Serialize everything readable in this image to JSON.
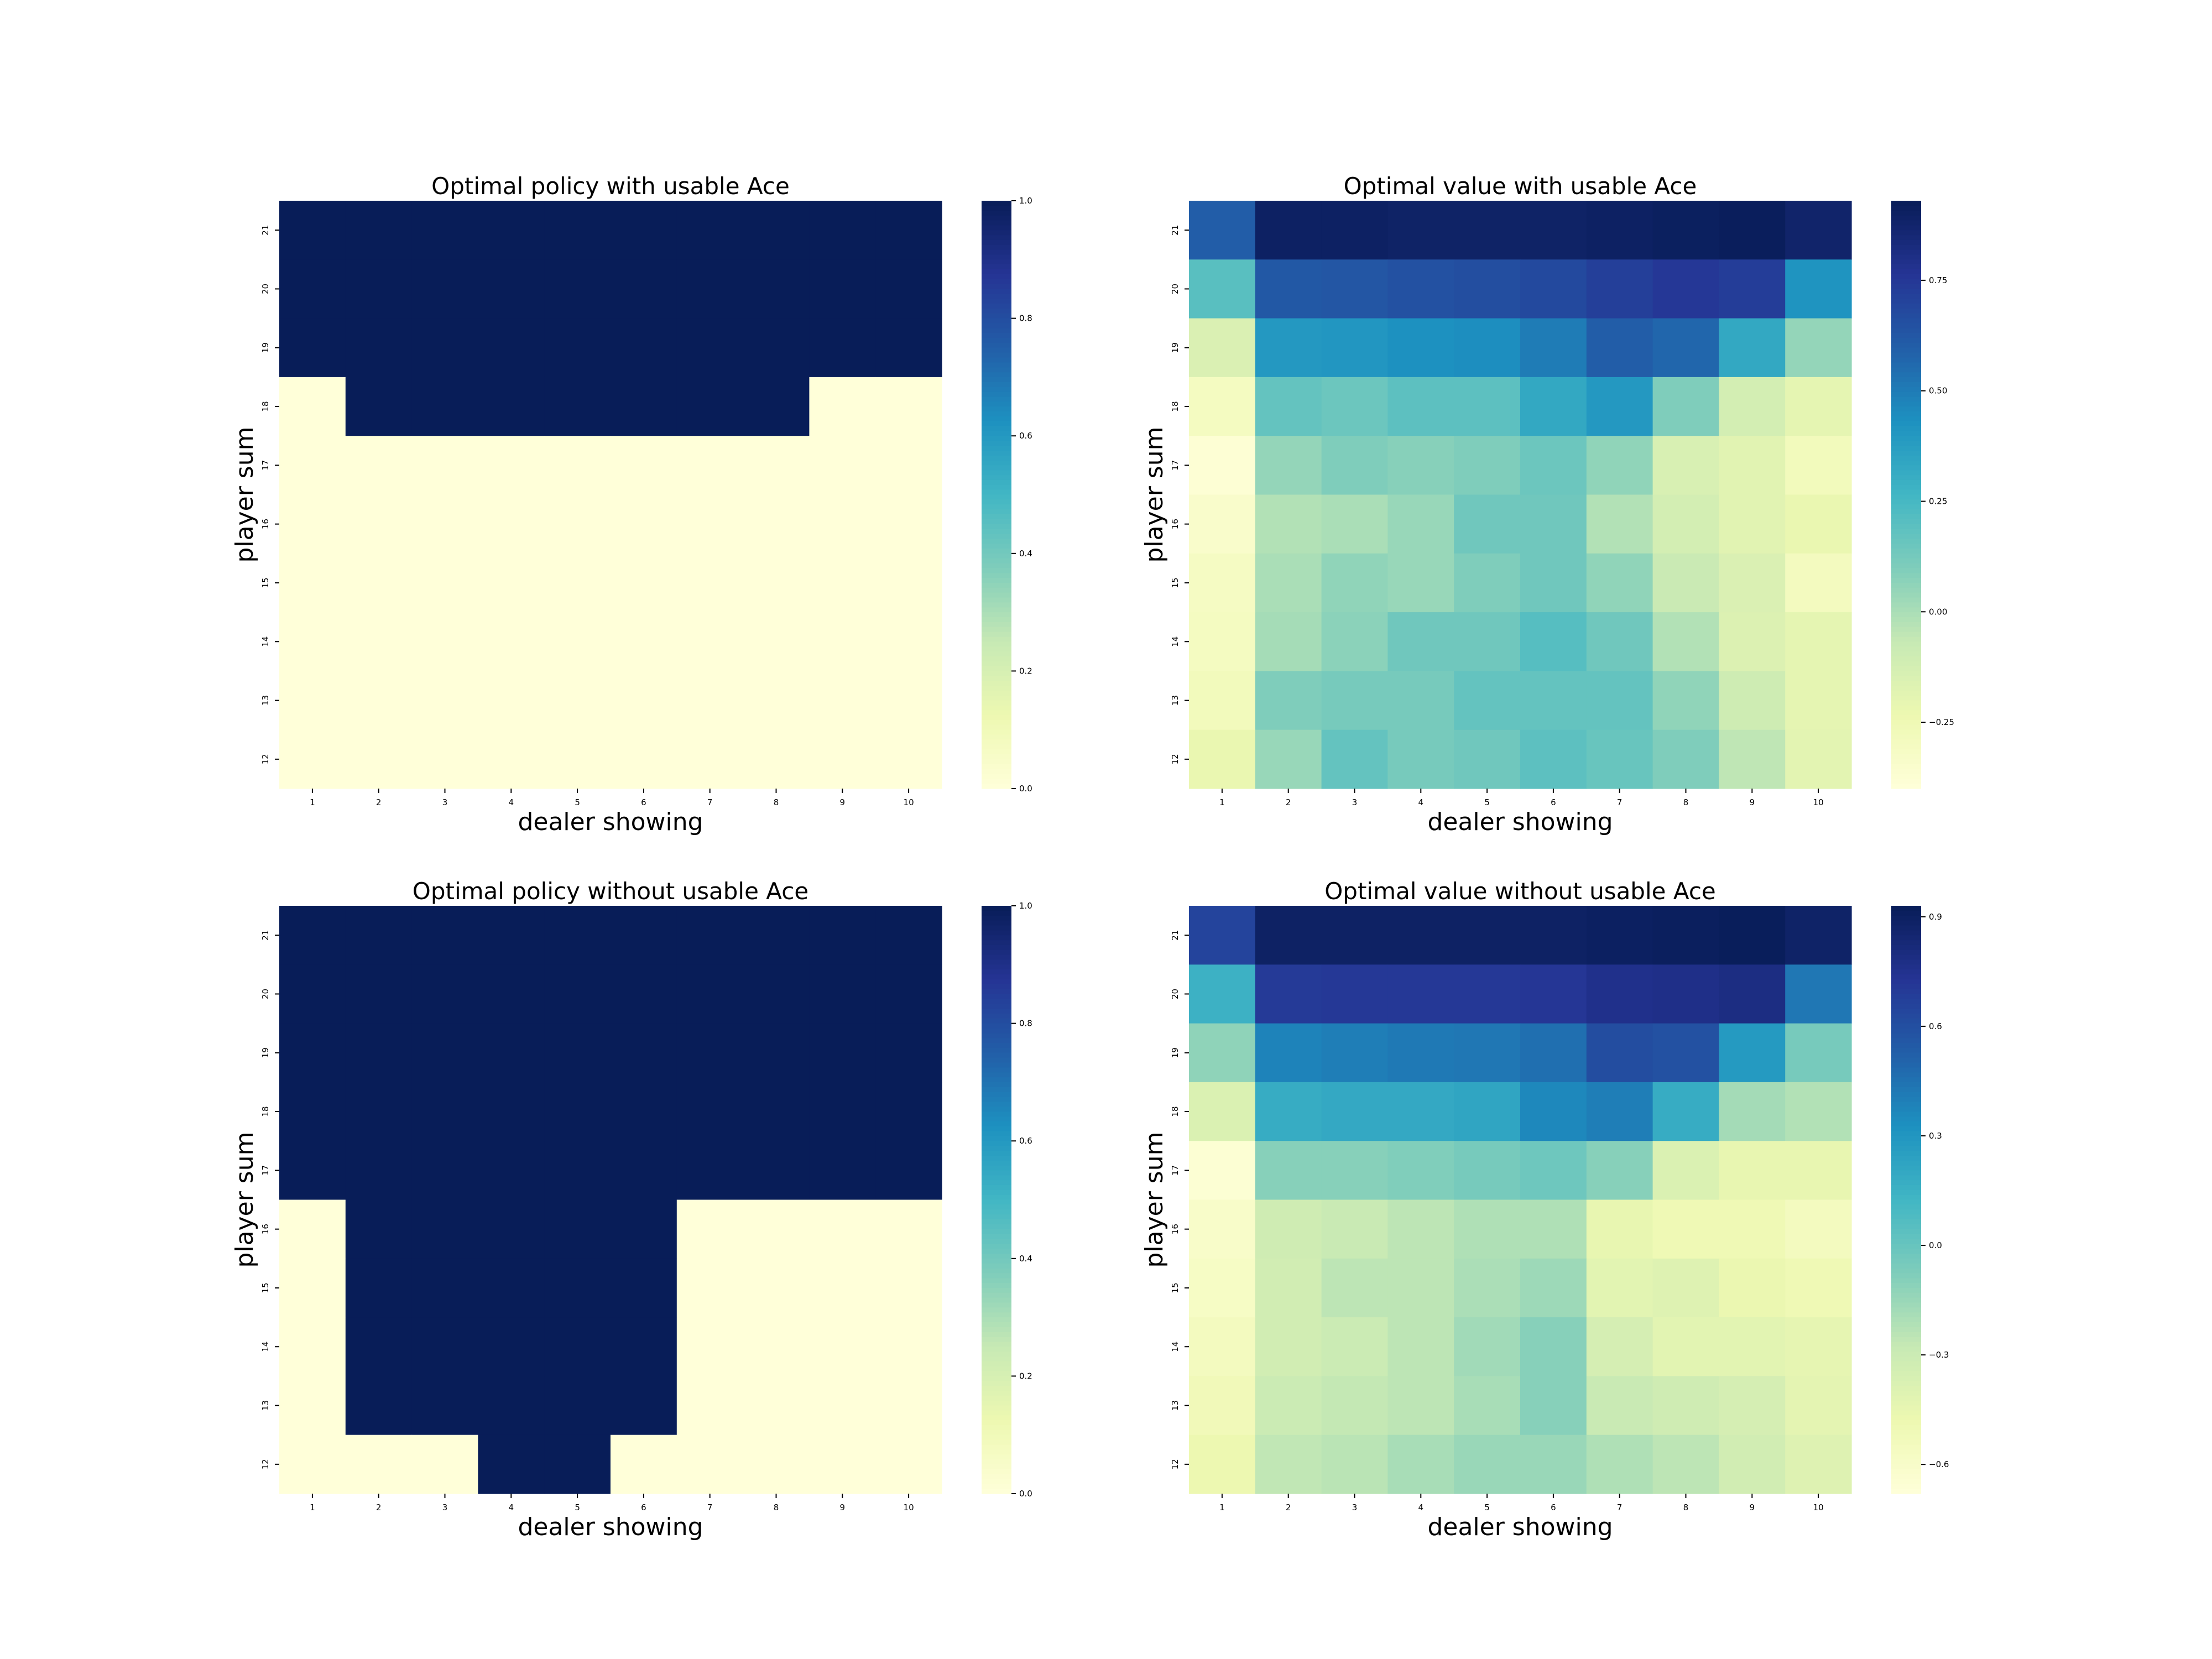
{
  "chart_data": [
    {
      "type": "heatmap",
      "title": "Optimal policy with usable Ace",
      "xlabel": "dealer showing",
      "ylabel": "player sum",
      "x_ticks": [
        "1",
        "2",
        "3",
        "4",
        "5",
        "6",
        "7",
        "8",
        "9",
        "10"
      ],
      "y_ticks": [
        "21",
        "20",
        "19",
        "18",
        "17",
        "16",
        "15",
        "14",
        "13",
        "12"
      ],
      "colorbar_range": [
        0,
        1
      ],
      "colorbar_ticks": [
        {
          "v": 1,
          "label": "1.0"
        },
        {
          "v": 0.8,
          "label": "0.8"
        },
        {
          "v": 0.6,
          "label": "0.6"
        },
        {
          "v": 0.4,
          "label": "0.4"
        },
        {
          "v": 0.2,
          "label": "0.2"
        },
        {
          "v": 0,
          "label": "0.0"
        }
      ],
      "values": [
        [
          1,
          1,
          1,
          1,
          1,
          1,
          1,
          1,
          1,
          1
        ],
        [
          1,
          1,
          1,
          1,
          1,
          1,
          1,
          1,
          1,
          1
        ],
        [
          1,
          1,
          1,
          1,
          1,
          1,
          1,
          1,
          1,
          1
        ],
        [
          0,
          1,
          1,
          1,
          1,
          1,
          1,
          1,
          0,
          0
        ],
        [
          0,
          0,
          0,
          0,
          0,
          0,
          0,
          0,
          0,
          0
        ],
        [
          0,
          0,
          0,
          0,
          0,
          0,
          0,
          0,
          0,
          0
        ],
        [
          0,
          0,
          0,
          0,
          0,
          0,
          0,
          0,
          0,
          0
        ],
        [
          0,
          0,
          0,
          0,
          0,
          0,
          0,
          0,
          0,
          0
        ],
        [
          0,
          0,
          0,
          0,
          0,
          0,
          0,
          0,
          0,
          0
        ],
        [
          0,
          0,
          0,
          0,
          0,
          0,
          0,
          0,
          0,
          0
        ]
      ]
    },
    {
      "type": "heatmap",
      "title": "Optimal value with usable Ace",
      "xlabel": "dealer showing",
      "ylabel": "player sum",
      "x_ticks": [
        "1",
        "2",
        "3",
        "4",
        "5",
        "6",
        "7",
        "8",
        "9",
        "10"
      ],
      "y_ticks": [
        "21",
        "20",
        "19",
        "18",
        "17",
        "16",
        "15",
        "14",
        "13",
        "12"
      ],
      "colorbar_range": [
        -0.4,
        0.93
      ],
      "colorbar_ticks": [
        {
          "v": 0.75,
          "label": "0.75"
        },
        {
          "v": 0.5,
          "label": "0.50"
        },
        {
          "v": 0.25,
          "label": "0.25"
        },
        {
          "v": 0,
          "label": "0.00"
        },
        {
          "v": -0.25,
          "label": "−0.25"
        }
      ],
      "values": [
        [
          0.6,
          0.9,
          0.9,
          0.89,
          0.89,
          0.89,
          0.9,
          0.91,
          0.92,
          0.88
        ],
        [
          0.2,
          0.62,
          0.63,
          0.65,
          0.66,
          0.68,
          0.72,
          0.75,
          0.73,
          0.42
        ],
        [
          -0.15,
          0.4,
          0.41,
          0.43,
          0.44,
          0.5,
          0.6,
          0.57,
          0.33,
          0.05
        ],
        [
          -0.3,
          0.17,
          0.15,
          0.19,
          0.19,
          0.33,
          0.4,
          0.1,
          -0.12,
          -0.2
        ],
        [
          -0.38,
          0.05,
          0.1,
          0.08,
          0.1,
          0.15,
          0.06,
          -0.14,
          -0.18,
          -0.28
        ],
        [
          -0.34,
          -0.02,
          0.0,
          0.04,
          0.14,
          0.14,
          -0.02,
          -0.12,
          -0.18,
          -0.22
        ],
        [
          -0.31,
          0.0,
          0.06,
          0.04,
          0.1,
          0.14,
          0.06,
          -0.08,
          -0.15,
          -0.29
        ],
        [
          -0.3,
          0.01,
          0.07,
          0.14,
          0.14,
          0.21,
          0.14,
          -0.02,
          -0.16,
          -0.2
        ],
        [
          -0.28,
          0.1,
          0.12,
          0.12,
          0.17,
          0.17,
          0.17,
          0.06,
          -0.1,
          -0.2
        ],
        [
          -0.22,
          0.04,
          0.17,
          0.12,
          0.14,
          0.19,
          0.16,
          0.1,
          -0.05,
          -0.19
        ]
      ]
    },
    {
      "type": "heatmap",
      "title": "Optimal policy without usable Ace",
      "xlabel": "dealer showing",
      "ylabel": "player sum",
      "x_ticks": [
        "1",
        "2",
        "3",
        "4",
        "5",
        "6",
        "7",
        "8",
        "9",
        "10"
      ],
      "y_ticks": [
        "21",
        "20",
        "19",
        "18",
        "17",
        "16",
        "15",
        "14",
        "13",
        "12"
      ],
      "colorbar_range": [
        0,
        1
      ],
      "colorbar_ticks": [
        {
          "v": 1,
          "label": "1.0"
        },
        {
          "v": 0.8,
          "label": "0.8"
        },
        {
          "v": 0.6,
          "label": "0.6"
        },
        {
          "v": 0.4,
          "label": "0.4"
        },
        {
          "v": 0.2,
          "label": "0.2"
        },
        {
          "v": 0,
          "label": "0.0"
        }
      ],
      "values": [
        [
          1,
          1,
          1,
          1,
          1,
          1,
          1,
          1,
          1,
          1
        ],
        [
          1,
          1,
          1,
          1,
          1,
          1,
          1,
          1,
          1,
          1
        ],
        [
          1,
          1,
          1,
          1,
          1,
          1,
          1,
          1,
          1,
          1
        ],
        [
          1,
          1,
          1,
          1,
          1,
          1,
          1,
          1,
          1,
          1
        ],
        [
          1,
          1,
          1,
          1,
          1,
          1,
          1,
          1,
          1,
          1
        ],
        [
          0,
          1,
          1,
          1,
          1,
          1,
          0,
          0,
          0,
          0
        ],
        [
          0,
          1,
          1,
          1,
          1,
          1,
          0,
          0,
          0,
          0
        ],
        [
          0,
          1,
          1,
          1,
          1,
          1,
          0,
          0,
          0,
          0
        ],
        [
          0,
          1,
          1,
          1,
          1,
          1,
          0,
          0,
          0,
          0
        ],
        [
          0,
          0,
          0,
          1,
          1,
          0,
          0,
          0,
          0,
          0
        ]
      ]
    },
    {
      "type": "heatmap",
      "title": "Optimal value without usable Ace",
      "xlabel": "dealer showing",
      "ylabel": "player sum",
      "x_ticks": [
        "1",
        "2",
        "3",
        "4",
        "5",
        "6",
        "7",
        "8",
        "9",
        "10"
      ],
      "y_ticks": [
        "21",
        "20",
        "19",
        "18",
        "17",
        "16",
        "15",
        "14",
        "13",
        "12"
      ],
      "colorbar_range": [
        -0.68,
        0.93
      ],
      "colorbar_ticks": [
        {
          "v": 0.9,
          "label": "0.9"
        },
        {
          "v": 0.6,
          "label": "0.6"
        },
        {
          "v": 0.3,
          "label": "0.3"
        },
        {
          "v": 0,
          "label": "0.0"
        },
        {
          "v": -0.3,
          "label": "−0.3"
        },
        {
          "v": -0.6,
          "label": "−0.6"
        }
      ],
      "values": [
        [
          0.65,
          0.89,
          0.89,
          0.89,
          0.89,
          0.89,
          0.9,
          0.91,
          0.92,
          0.88
        ],
        [
          0.15,
          0.7,
          0.71,
          0.71,
          0.71,
          0.72,
          0.76,
          0.77,
          0.79,
          0.43
        ],
        [
          -0.12,
          0.38,
          0.4,
          0.42,
          0.43,
          0.46,
          0.61,
          0.59,
          0.28,
          -0.05
        ],
        [
          -0.38,
          0.18,
          0.2,
          0.2,
          0.22,
          0.36,
          0.4,
          0.18,
          -0.18,
          -0.22
        ],
        [
          -0.65,
          -0.1,
          -0.1,
          -0.08,
          -0.05,
          -0.02,
          -0.1,
          -0.38,
          -0.45,
          -0.45
        ],
        [
          -0.6,
          -0.32,
          -0.29,
          -0.25,
          -0.21,
          -0.21,
          -0.45,
          -0.5,
          -0.5,
          -0.55
        ],
        [
          -0.58,
          -0.33,
          -0.25,
          -0.25,
          -0.2,
          -0.16,
          -0.42,
          -0.4,
          -0.47,
          -0.5
        ],
        [
          -0.55,
          -0.33,
          -0.3,
          -0.25,
          -0.17,
          -0.1,
          -0.35,
          -0.42,
          -0.42,
          -0.44
        ],
        [
          -0.52,
          -0.3,
          -0.27,
          -0.25,
          -0.19,
          -0.1,
          -0.29,
          -0.32,
          -0.35,
          -0.43
        ],
        [
          -0.48,
          -0.26,
          -0.24,
          -0.19,
          -0.15,
          -0.15,
          -0.21,
          -0.25,
          -0.33,
          -0.4
        ]
      ]
    }
  ]
}
